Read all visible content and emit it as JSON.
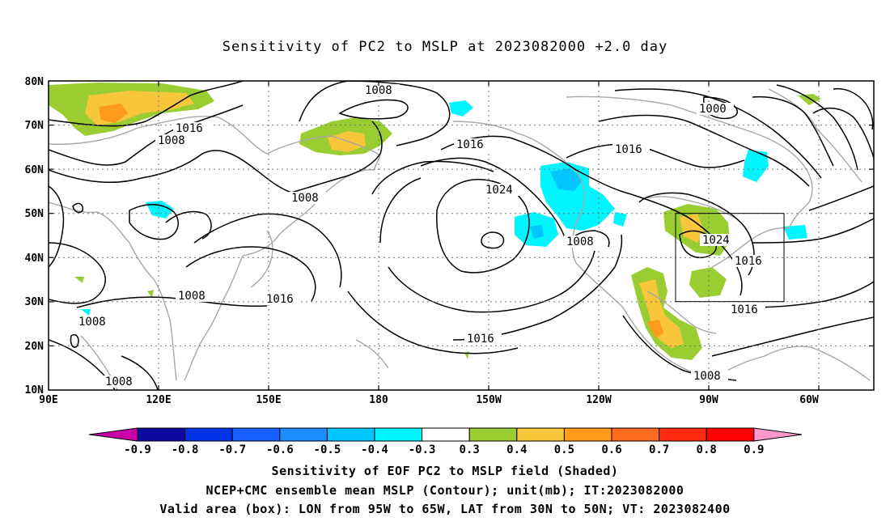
{
  "title": "Sensitivity of PC2 to MSLP at 2023082000 +2.0 day",
  "map": {
    "lat_labels": [
      "80N",
      "70N",
      "60N",
      "50N",
      "40N",
      "30N",
      "20N",
      "10N"
    ],
    "lon_labels": [
      "90E",
      "120E",
      "150E",
      "180",
      "150W",
      "120W",
      "90W",
      "60W"
    ],
    "lon_range": [
      "90E",
      "~50W"
    ],
    "lat_range": [
      "10N",
      "80N"
    ],
    "grid": "dotted",
    "valid_box": {
      "lon_from": "95W",
      "lon_to": "65W",
      "lat_from": "30N",
      "lat_to": "50N"
    },
    "contour_labels": [
      {
        "text": "1008",
        "note": "N Pacific near 75N 180"
      },
      {
        "text": "1016",
        "note": "Siberia"
      },
      {
        "text": "1008",
        "note": "NW Pacific 65N"
      },
      {
        "text": "1000",
        "note": "Arctic Canada"
      },
      {
        "text": "1016",
        "note": "Bering area"
      },
      {
        "text": "1016",
        "note": "N America 62N"
      },
      {
        "text": "1008",
        "note": "Kamchatka"
      },
      {
        "text": "1024",
        "note": "Pacific high"
      },
      {
        "text": "1008",
        "note": "US west"
      },
      {
        "text": "1024",
        "note": "Great Lakes high"
      },
      {
        "text": "1016",
        "note": "US east"
      },
      {
        "text": "1008",
        "note": "China"
      },
      {
        "text": "1016",
        "note": "subtropical Pacific"
      },
      {
        "text": "1016",
        "note": "Gulf coast"
      },
      {
        "text": "1008",
        "note": "Bay of Bengal"
      },
      {
        "text": "1016",
        "note": "tropical Pacific"
      },
      {
        "text": "1008",
        "note": "South China Sea"
      },
      {
        "text": "1008",
        "note": "Central America"
      }
    ]
  },
  "colorbar": {
    "labels": [
      "-0.9",
      "-0.8",
      "-0.7",
      "-0.6",
      "-0.5",
      "-0.4",
      "-0.3",
      "0.3",
      "0.4",
      "0.5",
      "0.6",
      "0.7",
      "0.8",
      "0.9"
    ],
    "colors": [
      "#cc00aa",
      "#0a0aa0",
      "#0033e6",
      "#1660ff",
      "#1c8dff",
      "#00c6ff",
      "#00f5ff",
      "#ffffff",
      "#9acd32",
      "#f7c63a",
      "#ff9a1c",
      "#ff6a1f",
      "#ff2a10",
      "#ff0000",
      "#ff99cc"
    ]
  },
  "captions": [
    "Sensitivity of EOF PC2 to MSLP field (Shaded)",
    "NCEP+CMC ensemble mean MSLP (Contour); unit(mb); IT:2023082000",
    "Valid area (box): LON from 95W to 65W, LAT from 30N to 50N; VT: 2023082400"
  ]
}
